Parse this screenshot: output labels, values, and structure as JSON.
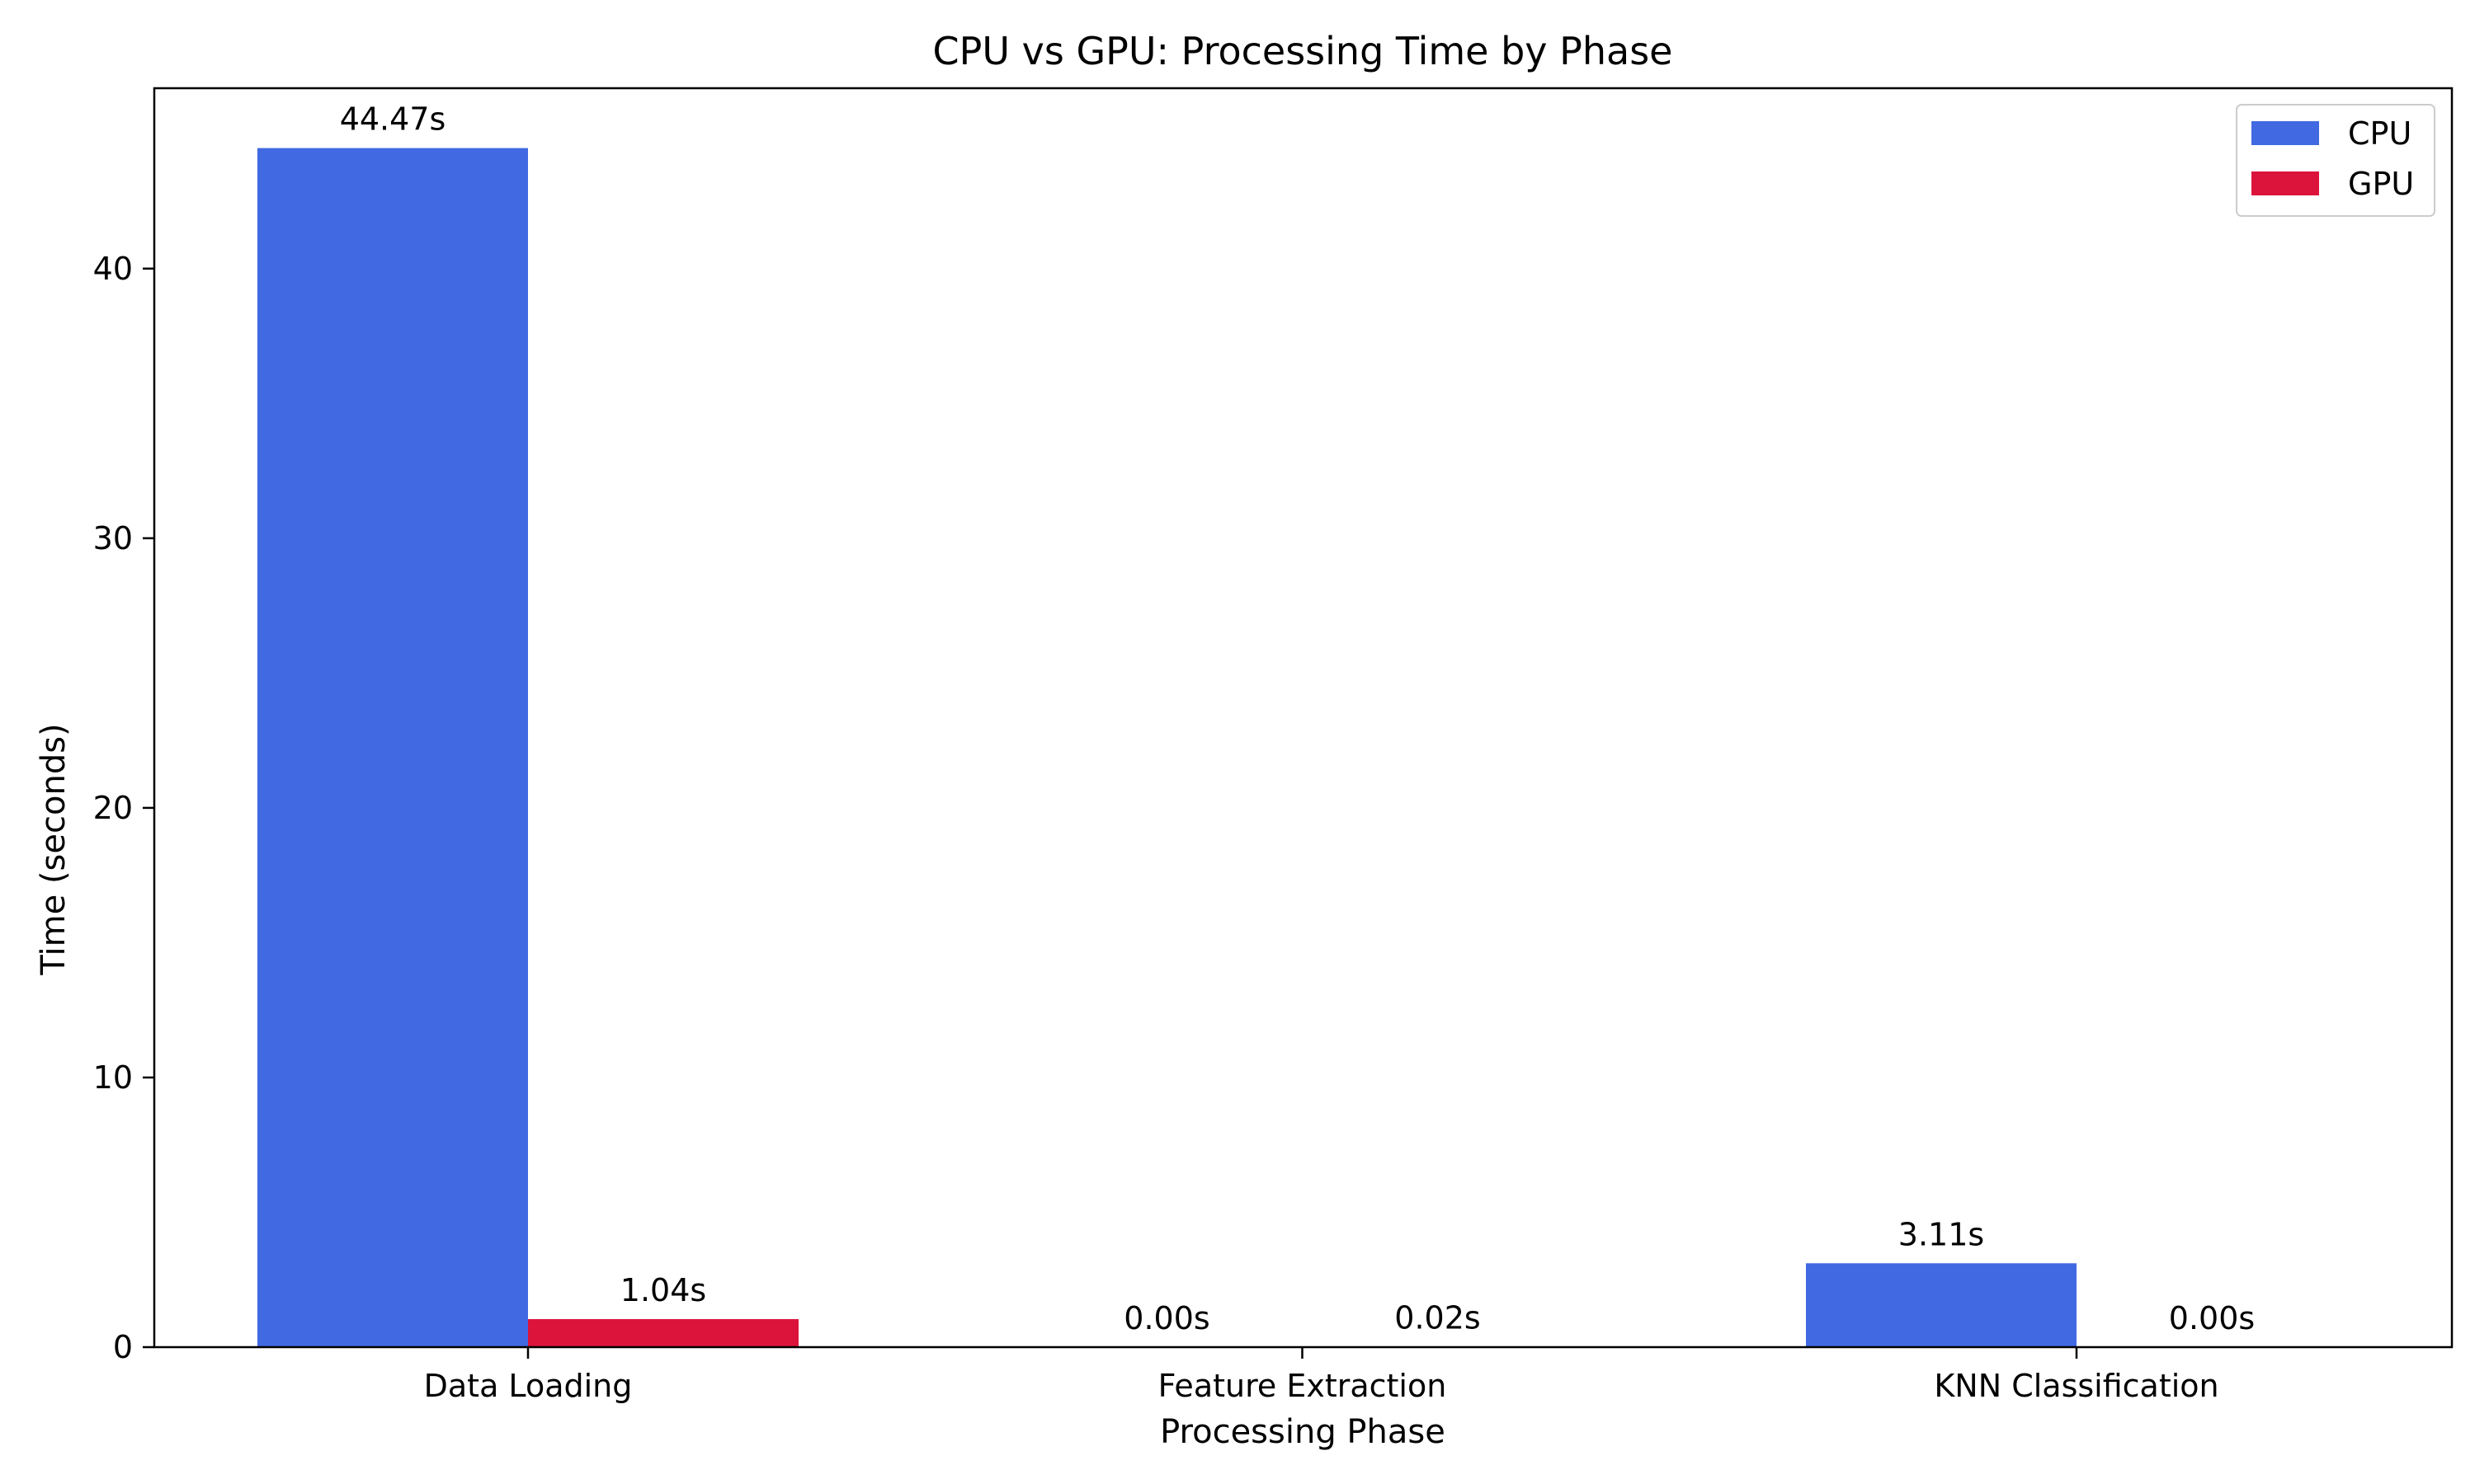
{
  "chart_data": {
    "type": "bar",
    "title": "CPU vs GPU: Processing Time by Phase",
    "xlabel": "Processing Phase",
    "ylabel": "Time (seconds)",
    "categories": [
      "Data Loading",
      "Feature Extraction",
      "KNN Classification"
    ],
    "series": [
      {
        "name": "CPU",
        "color": "#4169e1",
        "values": [
          44.47,
          0.0,
          3.11
        ],
        "labels": [
          "44.47s",
          "0.00s",
          "3.11s"
        ]
      },
      {
        "name": "GPU",
        "color": "#dc143c",
        "values": [
          1.04,
          0.02,
          0.0
        ],
        "labels": [
          "1.04s",
          "0.02s",
          "0.00s"
        ]
      }
    ],
    "ylim": [
      0,
      46.69
    ],
    "yticks": [
      0,
      10,
      20,
      30,
      40
    ],
    "ytick_labels": [
      "0",
      "10",
      "20",
      "30",
      "40"
    ],
    "grid": false,
    "legend_position": "top-right"
  }
}
